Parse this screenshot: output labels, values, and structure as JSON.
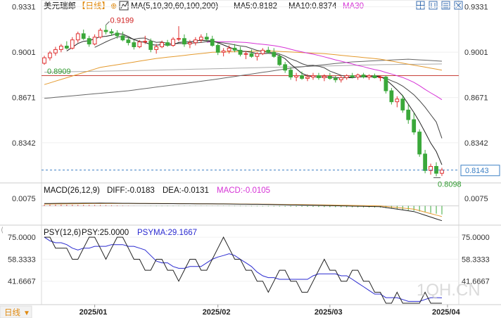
{
  "header": {
    "symbol": "美元瑞郎",
    "period": "【日线】",
    "ma_label": "MA(5,10,30,60,100,200)",
    "ma5_label": "MA5:0.8182",
    "ma10_label": "MA10:0.8374",
    "ma30_label": "MA30"
  },
  "toolbar": {
    "icons": [
      "grid-icon",
      "candles-icon",
      "menu-icon",
      "close-icon"
    ]
  },
  "colors": {
    "up": "#e03030",
    "down": "#3aa83a",
    "ma5": "#222222",
    "ma10": "#444444",
    "ma30": "#d633d6",
    "ma60": "#e49a2e",
    "ma100": "#666666",
    "ma200": "#aaaaaa",
    "hline": "#c8423a",
    "dash": "#3b7fc4"
  },
  "main_axis": {
    "ticks": [
      "0.9331",
      "0.9001",
      "0.8671",
      "0.8342"
    ],
    "tick_values": [
      0.9331,
      0.9001,
      0.8671,
      0.8342
    ],
    "high_label": "0.9199",
    "low_label": "0.8909",
    "last_label": "0.8098",
    "current_price": "0.8143"
  },
  "macd": {
    "title": "MACD(26,12,9)",
    "diff_label": "DIFF:-0.0183",
    "dea_label": "DEA:-0.0131",
    "macd_label": "MACD:-0.0105",
    "tick": "0.0075"
  },
  "psy": {
    "title": "PSY(12,6)",
    "psy_label": "PSY:25.0000",
    "psyma_label": "PSYMA:29.1667",
    "ticks": [
      "75.0000",
      "58.3333",
      "41.6667"
    ]
  },
  "x_axis": {
    "period_button": "日线",
    "labels": [
      "2025/01",
      "2025/02",
      "2025/03",
      "2025/04"
    ],
    "label_index": [
      9,
      31,
      51,
      72
    ]
  },
  "watermark": "1QH.CN",
  "chart_data": [
    {
      "type": "candlestick",
      "name": "美元瑞郎 日线",
      "ohlc": [
        [
          0.892,
          0.8975,
          0.8909,
          0.896
        ],
        [
          0.896,
          0.901,
          0.894,
          0.8995
        ],
        [
          0.8995,
          0.904,
          0.8975,
          0.902
        ],
        [
          0.902,
          0.906,
          0.9,
          0.9045
        ],
        [
          0.9045,
          0.908,
          0.902,
          0.903
        ],
        [
          0.903,
          0.911,
          0.902,
          0.909
        ],
        [
          0.909,
          0.915,
          0.907,
          0.9135
        ],
        [
          0.9135,
          0.9165,
          0.909,
          0.91
        ],
        [
          0.91,
          0.912,
          0.904,
          0.906
        ],
        [
          0.906,
          0.913,
          0.905,
          0.911
        ],
        [
          0.911,
          0.9175,
          0.91,
          0.916
        ],
        [
          0.916,
          0.9199,
          0.913,
          0.915
        ],
        [
          0.915,
          0.917,
          0.912,
          0.914
        ],
        [
          0.914,
          0.916,
          0.91,
          0.912
        ],
        [
          0.912,
          0.915,
          0.908,
          0.909
        ],
        [
          0.909,
          0.911,
          0.905,
          0.907
        ],
        [
          0.907,
          0.909,
          0.902,
          0.904
        ],
        [
          0.904,
          0.909,
          0.903,
          0.9075
        ],
        [
          0.9075,
          0.912,
          0.906,
          0.908
        ],
        [
          0.908,
          0.91,
          0.9,
          0.902
        ],
        [
          0.902,
          0.906,
          0.899,
          0.904
        ],
        [
          0.904,
          0.9085,
          0.903,
          0.907
        ],
        [
          0.907,
          0.909,
          0.904,
          0.905
        ],
        [
          0.905,
          0.911,
          0.904,
          0.9095
        ],
        [
          0.9095,
          0.919,
          0.908,
          0.91
        ],
        [
          0.91,
          0.913,
          0.904,
          0.906
        ],
        [
          0.906,
          0.909,
          0.903,
          0.907
        ],
        [
          0.907,
          0.911,
          0.905,
          0.909
        ],
        [
          0.909,
          0.913,
          0.907,
          0.911
        ],
        [
          0.911,
          0.914,
          0.908,
          0.9095
        ],
        [
          0.9095,
          0.912,
          0.904,
          0.905
        ],
        [
          0.905,
          0.907,
          0.898,
          0.9
        ],
        [
          0.9,
          0.903,
          0.897,
          0.901
        ],
        [
          0.901,
          0.905,
          0.899,
          0.903
        ],
        [
          0.903,
          0.906,
          0.9,
          0.9015
        ],
        [
          0.9015,
          0.904,
          0.897,
          0.8985
        ],
        [
          0.8985,
          0.901,
          0.895,
          0.899
        ],
        [
          0.899,
          0.902,
          0.896,
          0.897
        ],
        [
          0.897,
          0.9,
          0.894,
          0.899
        ],
        [
          0.899,
          0.903,
          0.898,
          0.9015
        ],
        [
          0.9015,
          0.904,
          0.899,
          0.9
        ],
        [
          0.9,
          0.903,
          0.896,
          0.897
        ],
        [
          0.897,
          0.899,
          0.89,
          0.891
        ],
        [
          0.891,
          0.893,
          0.885,
          0.887
        ],
        [
          0.887,
          0.889,
          0.88,
          0.882
        ],
        [
          0.882,
          0.885,
          0.879,
          0.883
        ],
        [
          0.883,
          0.886,
          0.88,
          0.881
        ],
        [
          0.881,
          0.884,
          0.879,
          0.882
        ],
        [
          0.882,
          0.885,
          0.88,
          0.883
        ],
        [
          0.883,
          0.885,
          0.88,
          0.8815
        ],
        [
          0.8815,
          0.884,
          0.879,
          0.8825
        ],
        [
          0.8825,
          0.885,
          0.88,
          0.881
        ],
        [
          0.881,
          0.883,
          0.878,
          0.88
        ],
        [
          0.88,
          0.883,
          0.878,
          0.8815
        ],
        [
          0.8815,
          0.884,
          0.88,
          0.883
        ],
        [
          0.883,
          0.885,
          0.881,
          0.882
        ],
        [
          0.882,
          0.8845,
          0.88,
          0.8835
        ],
        [
          0.8835,
          0.885,
          0.881,
          0.882
        ],
        [
          0.882,
          0.884,
          0.88,
          0.883
        ],
        [
          0.883,
          0.8845,
          0.881,
          0.8815
        ],
        [
          0.8815,
          0.883,
          0.879,
          0.882
        ],
        [
          0.882,
          0.883,
          0.87,
          0.872
        ],
        [
          0.872,
          0.874,
          0.862,
          0.864
        ],
        [
          0.864,
          0.868,
          0.86,
          0.866
        ],
        [
          0.866,
          0.869,
          0.856,
          0.858
        ],
        [
          0.858,
          0.862,
          0.848,
          0.851
        ],
        [
          0.851,
          0.856,
          0.84,
          0.842
        ],
        [
          0.842,
          0.844,
          0.824,
          0.826
        ],
        [
          0.826,
          0.829,
          0.812,
          0.814
        ],
        [
          0.814,
          0.819,
          0.811,
          0.817
        ],
        [
          0.817,
          0.82,
          0.8098,
          0.812
        ],
        [
          0.812,
          0.816,
          0.81,
          0.8143
        ]
      ],
      "ma5": [
        null,
        null,
        null,
        null,
        0.901,
        0.9036,
        0.9064,
        0.908,
        0.9084,
        0.9099,
        0.9113,
        0.9116,
        0.9124,
        0.9136,
        0.9132,
        0.9114,
        0.9092,
        0.9079,
        0.9071,
        0.9057,
        0.9051,
        0.9057,
        0.9052,
        0.9055,
        0.9071,
        0.9075,
        0.9075,
        0.9083,
        0.9087,
        0.9085,
        0.9083,
        0.9069,
        0.9053,
        0.9037,
        0.9022,
        0.9008,
        0.9006,
        0.9,
        0.899,
        0.899,
        0.8993,
        0.8989,
        0.8977,
        0.8953,
        0.8914,
        0.888,
        0.8846,
        0.883,
        0.8822,
        0.8821,
        0.882,
        0.882,
        0.8816,
        0.8813,
        0.8816,
        0.8815,
        0.8822,
        0.8824,
        0.8828,
        0.8826,
        0.8824,
        0.8801,
        0.8765,
        0.8727,
        0.8684,
        0.8622,
        0.8562,
        0.8494,
        0.8418,
        0.834,
        0.8278,
        0.8182
      ],
      "ma10": [
        null,
        null,
        null,
        null,
        null,
        null,
        null,
        null,
        null,
        0.9036,
        0.9056,
        0.9076,
        0.9094,
        0.911,
        0.9116,
        0.9106,
        0.9094,
        0.9102,
        0.9104,
        0.9085,
        0.9072,
        0.9075,
        0.9063,
        0.9063,
        0.9064,
        0.9063,
        0.9066,
        0.9068,
        0.9071,
        0.9078,
        0.9079,
        0.9072,
        0.9068,
        0.9062,
        0.9054,
        0.9046,
        0.9041,
        0.9027,
        0.9014,
        0.9006,
        0.9,
        0.8997,
        0.8988,
        0.8972,
        0.8952,
        0.8937,
        0.8917,
        0.8904,
        0.8906,
        0.8898,
        0.8887,
        0.8863,
        0.8848,
        0.8832,
        0.8823,
        0.8818,
        0.8821,
        0.882,
        0.882,
        0.8821,
        0.8822,
        0.8811,
        0.8793,
        0.8777,
        0.8754,
        0.8723,
        0.8691,
        0.8648,
        0.8601,
        0.8546,
        0.8493,
        0.8374
      ],
      "ma30": [
        null,
        null,
        null,
        null,
        null,
        null,
        null,
        null,
        null,
        null,
        null,
        null,
        null,
        null,
        null,
        null,
        null,
        null,
        null,
        null,
        null,
        null,
        null,
        null,
        null,
        null,
        null,
        null,
        null,
        0.9073,
        0.9077,
        0.9077,
        0.9077,
        0.9076,
        0.9075,
        0.9073,
        0.9071,
        0.9067,
        0.9062,
        0.9058,
        0.9053,
        0.9048,
        0.9041,
        0.9033,
        0.9022,
        0.9012,
        0.9003,
        0.8994,
        0.8986,
        0.8977,
        0.8967,
        0.8956,
        0.8945,
        0.8935,
        0.8925,
        0.8915,
        0.8904,
        0.8895,
        0.8884,
        0.8874,
        0.8866,
        0.8853,
        0.8842,
        0.8829,
        0.8817,
        0.88,
        0.8781,
        0.8757,
        0.873,
        0.8705,
        0.8681,
        0.8655
      ],
      "ma60_approx": [
        [
          0,
          0.8765
        ],
        [
          10,
          0.889
        ],
        [
          20,
          0.8955
        ],
        [
          30,
          0.9
        ],
        [
          40,
          0.901
        ],
        [
          50,
          0.899
        ],
        [
          60,
          0.895
        ],
        [
          71,
          0.887
        ]
      ],
      "ma100_approx": [
        [
          0,
          0.8665
        ],
        [
          15,
          0.872
        ],
        [
          30,
          0.88
        ],
        [
          45,
          0.889
        ],
        [
          55,
          0.893
        ],
        [
          65,
          0.895
        ],
        [
          71,
          0.8935
        ]
      ],
      "ma200_approx": [
        [
          0,
          0.8855
        ],
        [
          20,
          0.887
        ],
        [
          40,
          0.889
        ],
        [
          60,
          0.891
        ],
        [
          71,
          0.8915
        ]
      ],
      "horizontal_line": 0.883,
      "ylim": [
        0.806,
        0.937
      ]
    },
    {
      "type": "line",
      "name": "MACD(26,12,9)",
      "diff_approx": [
        [
          0,
          0.003
        ],
        [
          10,
          0.0035
        ],
        [
          20,
          0.0028
        ],
        [
          30,
          0.0025
        ],
        [
          40,
          0.0018
        ],
        [
          50,
          0.0005
        ],
        [
          60,
          -0.001
        ],
        [
          66,
          -0.007
        ],
        [
          71,
          -0.0183
        ]
      ],
      "dea_approx": [
        [
          0,
          0.0022
        ],
        [
          10,
          0.003
        ],
        [
          20,
          0.003
        ],
        [
          30,
          0.0026
        ],
        [
          40,
          0.0021
        ],
        [
          50,
          0.0012
        ],
        [
          60,
          0.0
        ],
        [
          66,
          -0.004
        ],
        [
          71,
          -0.0131
        ]
      ],
      "macd_hist_approx": [
        [
          0,
          0.0016
        ],
        [
          10,
          0.001
        ],
        [
          20,
          -0.0004
        ],
        [
          30,
          -0.0002
        ],
        [
          40,
          -0.0006
        ],
        [
          50,
          -0.0014
        ],
        [
          60,
          -0.002
        ],
        [
          66,
          -0.006
        ],
        [
          71,
          -0.0105
        ]
      ],
      "ylim": [
        -0.022,
        0.011
      ]
    },
    {
      "type": "line",
      "name": "PSY(12,6)",
      "psy": [
        75,
        75,
        66.7,
        66.7,
        66.7,
        58.3,
        58.3,
        66.7,
        75,
        75,
        66.7,
        58.3,
        66.7,
        75,
        75,
        66.7,
        58.3,
        58.3,
        50,
        50,
        58.3,
        58.3,
        50,
        50,
        41.7,
        50,
        58.3,
        58.3,
        50,
        50,
        58.3,
        66.7,
        75,
        66.7,
        58.3,
        58.3,
        50,
        50,
        41.7,
        41.7,
        33.3,
        41.7,
        50,
        50,
        41.7,
        41.7,
        33.3,
        33.3,
        41.7,
        50,
        58.3,
        50,
        50,
        41.7,
        41.7,
        50,
        50,
        41.7,
        41.7,
        33.3,
        33.3,
        25,
        25,
        33.3,
        25,
        25,
        25,
        25,
        33.3,
        25,
        25,
        25
      ],
      "psyma": [
        75,
        72.2,
        70.8,
        70.8,
        69.4,
        66.7,
        65.3,
        66.7,
        66.7,
        68.1,
        68.1,
        68.1,
        69.4,
        69.4,
        69.4,
        68.1,
        68.1,
        66.7,
        65.3,
        61.1,
        56.9,
        55.6,
        55.6,
        52.8,
        51.4,
        51.4,
        52.8,
        52.8,
        52.8,
        55.6,
        58.3,
        60.0,
        61.1,
        62.5,
        61.1,
        58.3,
        55.6,
        52.8,
        48.6,
        45.8,
        44.4,
        44.4,
        43.1,
        43.1,
        43.1,
        43.1,
        43.1,
        43.1,
        45.8,
        47.2,
        47.2,
        47.2,
        47.2,
        45.8,
        45.8,
        43.1,
        40.3,
        37.5,
        34.7,
        31.9,
        31.9,
        29.2,
        29.2,
        29.2,
        27.8,
        26.4,
        26.4,
        26.4,
        27.8,
        29.2,
        29.2,
        29.1667
      ],
      "ylim": [
        25.0,
        82.0
      ]
    }
  ]
}
